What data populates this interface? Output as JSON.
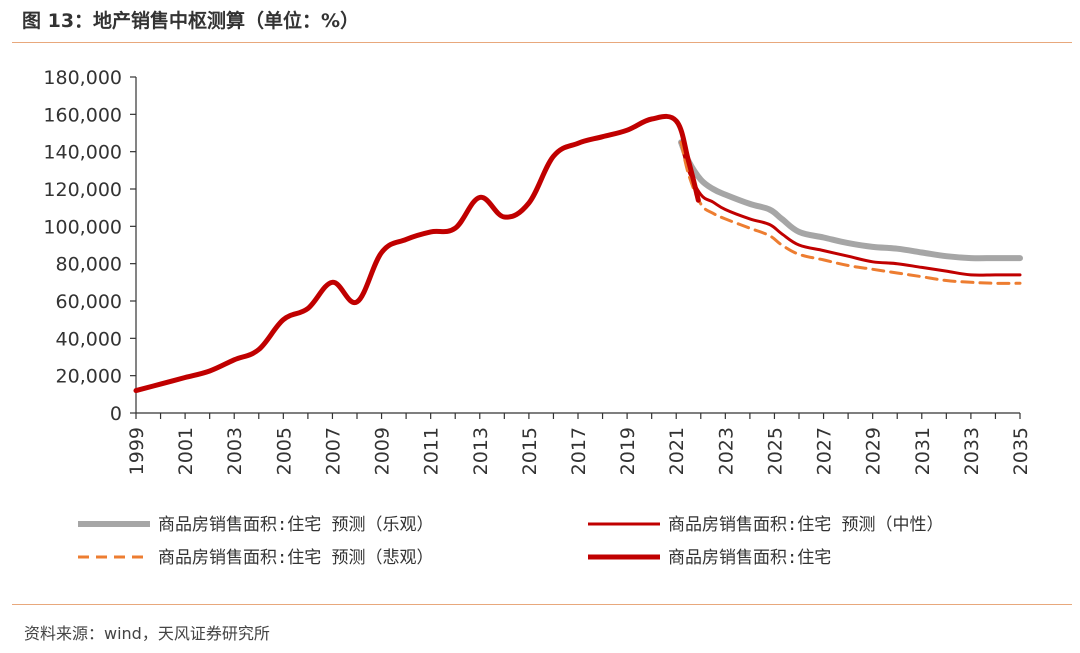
{
  "header": {
    "title": "图 13：地产销售中枢测算（单位：%）"
  },
  "footer": {
    "source": "资料来源：wind，天风证券研究所"
  },
  "colors": {
    "optimistic": "#a6a6a6",
    "neutral": "#c00000",
    "pessimistic": "#ed7d31",
    "actual": "#c00000",
    "rule": "#e8a87c"
  },
  "chart_data": {
    "type": "line",
    "title": "",
    "xlabel": "",
    "ylabel": "",
    "ylim": [
      0,
      180000
    ],
    "yticks": [
      0,
      20000,
      40000,
      60000,
      80000,
      100000,
      120000,
      140000,
      160000,
      180000
    ],
    "ytick_labels": [
      "0",
      "20,000",
      "40,000",
      "60,000",
      "80,000",
      "100,000",
      "120,000",
      "140,000",
      "160,000",
      "180,000"
    ],
    "xlim": [
      1999,
      2035
    ],
    "xtick_labels": [
      "1999",
      "2001",
      "2003",
      "2005",
      "2007",
      "2009",
      "2011",
      "2013",
      "2015",
      "2017",
      "2019",
      "2021",
      "2023",
      "2025",
      "2027",
      "2029",
      "2031",
      "2033",
      "2035"
    ],
    "legend_position": "bottom",
    "series": [
      {
        "name": "商品房销售面积:住宅 预测（乐观）",
        "style": "solid-thick-gray",
        "x": [
          2021.2,
          2021.5,
          2022,
          2022.5,
          2023,
          2024,
          2024.8,
          2025.3,
          2026,
          2027,
          2028,
          2029,
          2030,
          2031,
          2032,
          2033,
          2034,
          2035
        ],
        "values": [
          145000,
          135000,
          125000,
          120000,
          117000,
          112000,
          109000,
          104000,
          97000,
          94000,
          91000,
          89000,
          88000,
          86000,
          84000,
          83000,
          83000,
          83000
        ]
      },
      {
        "name": "商品房销售面积:住宅 预测（中性）",
        "style": "solid-thin-red",
        "x": [
          2021.2,
          2021.5,
          2022,
          2022.5,
          2023,
          2024,
          2024.8,
          2025.3,
          2026,
          2027,
          2028,
          2029,
          2030,
          2031,
          2032,
          2033,
          2034,
          2035
        ],
        "values": [
          145000,
          130000,
          117000,
          113000,
          109000,
          104000,
          101000,
          96000,
          90000,
          87000,
          84000,
          81000,
          80000,
          78000,
          76000,
          74000,
          74000,
          74000
        ]
      },
      {
        "name": "商品房销售面积:住宅 预测（悲观）",
        "style": "dashed-orange",
        "x": [
          2021.2,
          2021.5,
          2022,
          2022.5,
          2023,
          2024,
          2024.8,
          2025.3,
          2026,
          2027,
          2028,
          2029,
          2030,
          2031,
          2032,
          2033,
          2034,
          2035
        ],
        "values": [
          145000,
          128000,
          112000,
          107000,
          104000,
          99000,
          95000,
          90000,
          85000,
          82000,
          79000,
          77000,
          75000,
          73000,
          71000,
          70000,
          69500,
          69500
        ]
      },
      {
        "name": "商品房销售面积:住宅",
        "style": "solid-thick-red",
        "x": [
          1999,
          2000,
          2001,
          2002,
          2003,
          2004,
          2005,
          2006,
          2007,
          2008,
          2009,
          2010,
          2011,
          2012,
          2013,
          2014,
          2015,
          2016,
          2017,
          2018,
          2019,
          2020,
          2021,
          2021.5,
          2021.9
        ],
        "values": [
          12000,
          15500,
          19000,
          22500,
          28500,
          34000,
          50000,
          56000,
          70000,
          59500,
          86000,
          93000,
          97000,
          99000,
          115500,
          105000,
          112500,
          137500,
          144500,
          148000,
          151500,
          157500,
          156500,
          135000,
          114000
        ]
      }
    ]
  }
}
